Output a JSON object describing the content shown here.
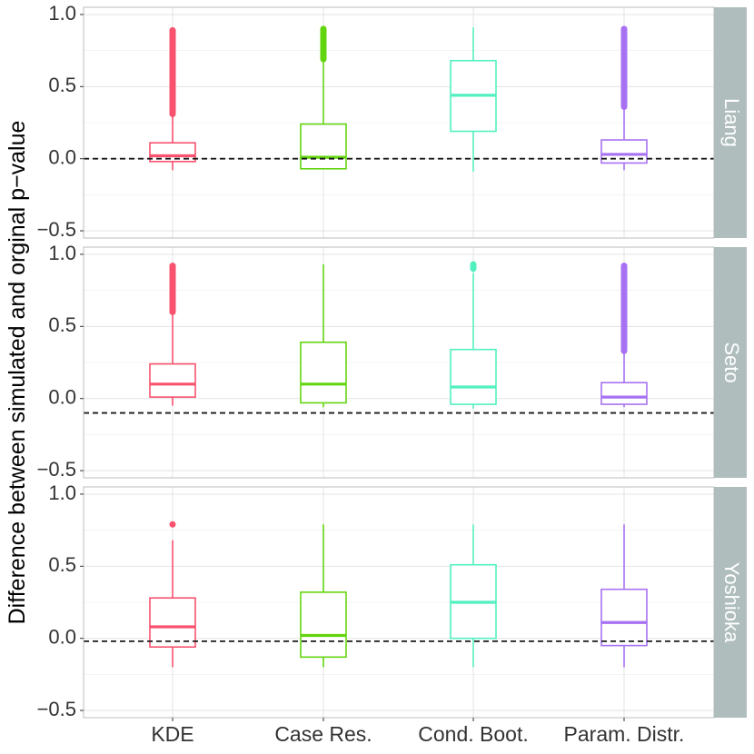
{
  "chart_data": {
    "type": "boxplot",
    "ylabel": "Difference between simulated and orginal p−value",
    "xlabel": "",
    "ylim": [
      -0.55,
      1.05
    ],
    "y_ticks": [
      -0.5,
      0.0,
      0.5,
      1.0
    ],
    "y_tick_labels": [
      "−0.5",
      "0.0",
      "0.5",
      "1.0"
    ],
    "grid": true,
    "legend": "none",
    "categories": [
      "KDE",
      "Case Res.",
      "Cond. Boot.",
      "Param. Distr."
    ],
    "colors": [
      "#F8526E",
      "#63D50F",
      "#52F0C0",
      "#A771F2"
    ],
    "strip_color": "#AFBDBD",
    "facets": [
      {
        "name": "Liang",
        "reference_line": 0.0,
        "boxes": [
          {
            "whisker_low": -0.08,
            "q1": -0.02,
            "median": 0.02,
            "q3": 0.11,
            "whisker_high": 0.31,
            "outliers_min": 0.31,
            "outliers_max": 0.89
          },
          {
            "whisker_low": -0.07,
            "q1": -0.07,
            "median": 0.01,
            "q3": 0.24,
            "whisker_high": 0.69,
            "outliers_min": 0.69,
            "outliers_max": 0.9
          },
          {
            "whisker_low": -0.09,
            "q1": 0.19,
            "median": 0.44,
            "q3": 0.68,
            "whisker_high": 0.91,
            "outliers_min": null,
            "outliers_max": null
          },
          {
            "whisker_low": -0.08,
            "q1": -0.03,
            "median": 0.03,
            "q3": 0.13,
            "whisker_high": 0.36,
            "outliers_min": 0.36,
            "outliers_max": 0.9
          }
        ]
      },
      {
        "name": "Seto",
        "reference_line": -0.1,
        "boxes": [
          {
            "whisker_low": -0.05,
            "q1": 0.01,
            "median": 0.1,
            "q3": 0.24,
            "whisker_high": 0.6,
            "outliers_min": 0.6,
            "outliers_max": 0.92
          },
          {
            "whisker_low": -0.06,
            "q1": -0.03,
            "median": 0.1,
            "q3": 0.39,
            "whisker_high": 0.93,
            "outliers_min": null,
            "outliers_max": null
          },
          {
            "whisker_low": -0.07,
            "q1": -0.04,
            "median": 0.08,
            "q3": 0.34,
            "whisker_high": 0.87,
            "outliers_min": 0.9,
            "outliers_max": 0.93
          },
          {
            "whisker_low": -0.06,
            "q1": -0.04,
            "median": 0.01,
            "q3": 0.11,
            "whisker_high": 0.33,
            "outliers_min": 0.33,
            "outliers_max": 0.92
          }
        ]
      },
      {
        "name": "Yoshioka",
        "reference_line": -0.02,
        "boxes": [
          {
            "whisker_low": -0.2,
            "q1": -0.06,
            "median": 0.08,
            "q3": 0.28,
            "whisker_high": 0.68,
            "outliers_min": 0.79,
            "outliers_max": 0.79
          },
          {
            "whisker_low": -0.2,
            "q1": -0.13,
            "median": 0.02,
            "q3": 0.32,
            "whisker_high": 0.79,
            "outliers_min": null,
            "outliers_max": null
          },
          {
            "whisker_low": -0.2,
            "q1": 0.0,
            "median": 0.25,
            "q3": 0.51,
            "whisker_high": 0.79,
            "outliers_min": null,
            "outliers_max": null
          },
          {
            "whisker_low": -0.2,
            "q1": -0.05,
            "median": 0.11,
            "q3": 0.34,
            "whisker_high": 0.79,
            "outliers_min": null,
            "outliers_max": null
          }
        ]
      }
    ]
  }
}
